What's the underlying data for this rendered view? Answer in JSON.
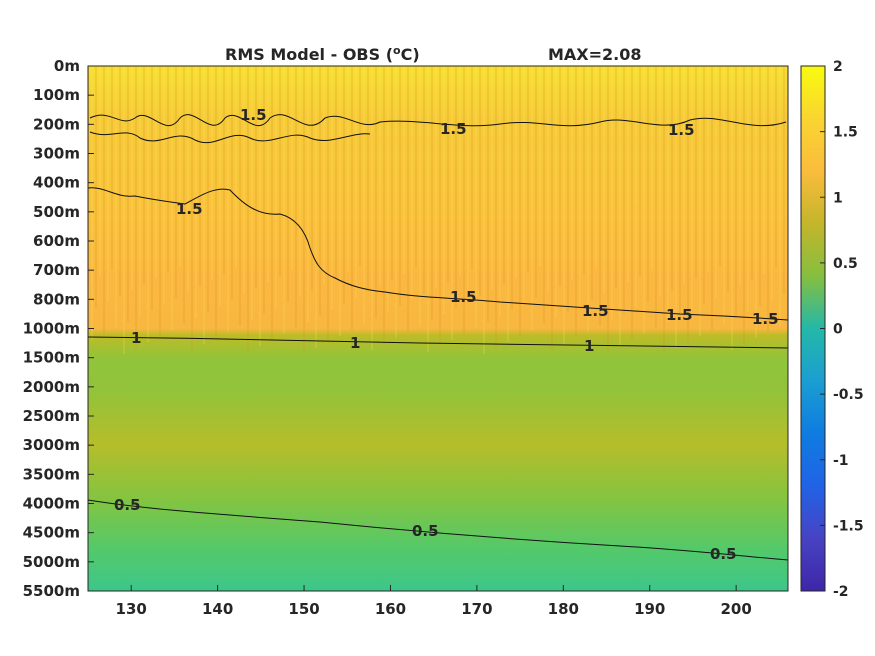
{
  "chart_data": {
    "type": "heatmap",
    "title_left": "RMS Model - OBS (",
    "title_unit_sup": "o",
    "title_unit_end": "C)",
    "title_max": "MAX=2.08",
    "x_ticks": [
      "130",
      "140",
      "150",
      "160",
      "170",
      "180",
      "190",
      "200"
    ],
    "x_tick_values": [
      130,
      140,
      150,
      160,
      170,
      180,
      190,
      200
    ],
    "xlim": [
      125,
      206
    ],
    "y_ticks": [
      "0m",
      "100m",
      "200m",
      "300m",
      "400m",
      "500m",
      "600m",
      "700m",
      "800m",
      "1000m",
      "1500m",
      "2000m",
      "2500m",
      "3000m",
      "3500m",
      "4000m",
      "4500m",
      "5000m",
      "5500m"
    ],
    "y_direction": "reversed",
    "colorbar": {
      "colormap": "parula",
      "range": [
        -2,
        2
      ],
      "ticks": [
        "2",
        "1.5",
        "1",
        "0.5",
        "0",
        "-0.5",
        "-1",
        "-1.5",
        "-2"
      ],
      "tick_values": [
        2,
        1.5,
        1,
        0.5,
        0,
        -0.5,
        -1,
        -1.5,
        -2
      ]
    },
    "contour_levels": [
      0.5,
      1,
      1.5
    ],
    "contour_labels": [
      "1.5",
      "1",
      "0.5"
    ],
    "approx_field": {
      "depths": [
        "0m",
        "200m",
        "400m",
        "600m",
        "800m",
        "1000m",
        "1500m",
        "2500m",
        "3500m",
        "4500m",
        "5500m"
      ],
      "rms_values": [
        1.8,
        1.62,
        1.55,
        1.45,
        1.38,
        1.2,
        0.85,
        0.95,
        0.75,
        0.62,
        0.45
      ]
    },
    "contour_1_0_depth_at_x": {
      "x": [
        125,
        150,
        175,
        206
      ],
      "depth": [
        "1000m",
        "1000m",
        "1000m",
        "1000m"
      ]
    },
    "contour_0_5_depth_at_x": {
      "x": [
        125,
        150,
        175,
        206
      ],
      "depth": [
        "4000m",
        "4300m",
        "4600m",
        "5000m"
      ]
    },
    "grid": false,
    "legend": "colorbar-right"
  }
}
